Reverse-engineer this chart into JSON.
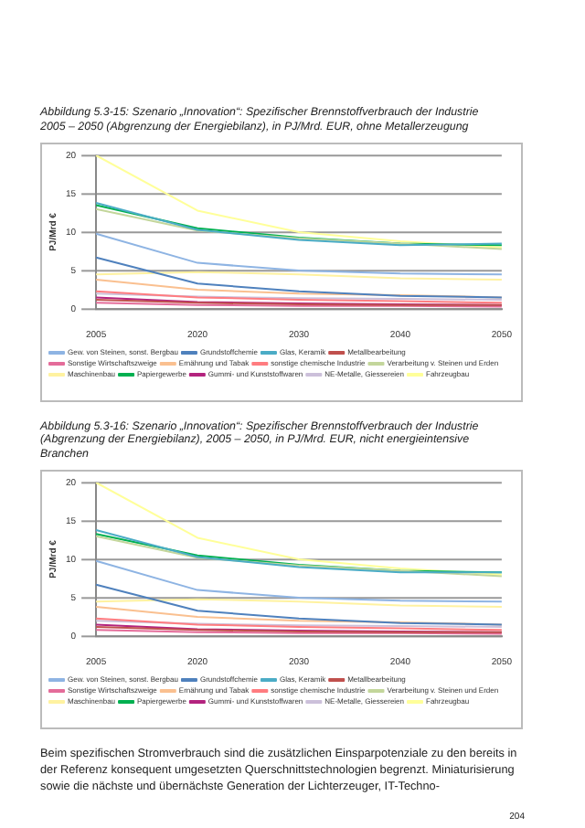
{
  "chart_data": [
    {
      "type": "line",
      "title": "Abbildung 5.3-15:  Szenario „Innovation“: Spezifischer Brennstoffverbrauch der Industrie 2005 – 2050 (Abgrenzung der Energiebilanz), in PJ/Mrd. EUR, ohne Metallerzeugung",
      "ylabel": "PJ/Mrd €",
      "categories": [
        "2005",
        "2020",
        "2030",
        "2040",
        "2050"
      ],
      "ylim": [
        0,
        20
      ],
      "yticks": [
        0,
        5,
        10,
        15,
        20
      ],
      "grid": "y",
      "legend": "bottom",
      "series": [
        {
          "name": "Gew. von Steinen, sonst. Bergbau",
          "color": "#8eb4e3",
          "values": [
            9.8,
            6,
            5,
            4.6,
            4.5
          ]
        },
        {
          "name": "Grundstoffchemie",
          "color": "#4f81bd",
          "values": [
            6.7,
            3.3,
            2.3,
            1.7,
            1.5
          ]
        },
        {
          "name": "Glas, Keramik",
          "color": "#4bacc6",
          "values": [
            13.8,
            10.3,
            9,
            8.3,
            8.5
          ]
        },
        {
          "name": "Metallbearbeitung",
          "color": "#c0504d",
          "values": [
            1.2,
            0.8,
            0.6,
            0.5,
            0.5
          ]
        },
        {
          "name": "Sonstige Wirtschaftszweige",
          "color": "#e46c9a",
          "values": [
            0.8,
            0.5,
            0.4,
            0.4,
            0.3
          ]
        },
        {
          "name": "Ernährung und Tabak",
          "color": "#fac090",
          "values": [
            3.8,
            2.5,
            2,
            1.8,
            1.5
          ]
        },
        {
          "name": "sonstige chemische Industrie",
          "color": "#ff7c80",
          "values": [
            2.3,
            1.5,
            1.2,
            1,
            0.8
          ]
        },
        {
          "name": "Verarbeitung v. Steinen und Erden",
          "color": "#c3d69b",
          "values": [
            13,
            10.2,
            9.2,
            8.5,
            7.8
          ]
        },
        {
          "name": "Maschinenbau",
          "color": "#fff2a0",
          "values": [
            4.5,
            4.8,
            4.5,
            4,
            3.8
          ]
        },
        {
          "name": "Papiergewerbe",
          "color": "#00b050",
          "values": [
            13.5,
            10.5,
            9.3,
            8.5,
            8.3
          ]
        },
        {
          "name": "Gummi- und Kunststoffwaren",
          "color": "#b3237e",
          "values": [
            1.5,
            0.9,
            0.7,
            0.6,
            0.5
          ]
        },
        {
          "name": "NE-Metalle, Giessereien",
          "color": "#ccc0da",
          "values": [
            2,
            1.6,
            1.4,
            1.3,
            1.2
          ]
        },
        {
          "name": "Fahrzeugbau",
          "color": "#ffff99",
          "values": [
            20,
            12.8,
            10,
            8.8,
            8
          ]
        }
      ]
    },
    {
      "type": "line",
      "title": "Abbildung 5.3-16:  Szenario „Innovation“: Spezifischer Brennstoffverbrauch der Industrie (Abgrenzung der Energiebilanz), 2005 – 2050, in PJ/Mrd. EUR, nicht energieintensive Branchen",
      "ylabel": "PJ/Mrd €",
      "categories": [
        "2005",
        "2020",
        "2030",
        "2040",
        "2050"
      ],
      "ylim": [
        0,
        20
      ],
      "yticks": [
        0,
        5,
        10,
        15,
        20
      ],
      "grid": "y",
      "legend": "bottom",
      "annotations": [
        "Beim spezifischen Stromverbrauch sind die zusätzlichen Einsparpotenziale zu den bereits in der Referenz konsequent umgesetzten Querschnittstechnologien begrenzt. Miniaturisierung sowie die nächste und übernächste Generation der Lichterzeuger, IT-Techno-",
        "204"
      ],
      "series": [
        {
          "name": "Gew. von Steinen, sonst. Bergbau",
          "color": "#8eb4e3",
          "values": [
            9.8,
            6,
            5,
            4.6,
            4.5
          ]
        },
        {
          "name": "Grundstoffchemie",
          "color": "#4f81bd",
          "values": [
            6.7,
            3.3,
            2.3,
            1.7,
            1.5
          ]
        },
        {
          "name": "Glas, Keramik",
          "color": "#4bacc6",
          "values": [
            13.8,
            10.3,
            9,
            8.3,
            8.3
          ]
        },
        {
          "name": "Metallbearbeitung",
          "color": "#c0504d",
          "values": [
            1.2,
            0.8,
            0.6,
            0.5,
            0.5
          ]
        },
        {
          "name": "Sonstige Wirtschaftszweige",
          "color": "#e46c9a",
          "values": [
            0.8,
            0.5,
            0.4,
            0.4,
            0.3
          ]
        },
        {
          "name": "Ernährung und Tabak",
          "color": "#fac090",
          "values": [
            3.8,
            2.5,
            2,
            1.8,
            1.5
          ]
        },
        {
          "name": "sonstige chemische Industrie",
          "color": "#ff7c80",
          "values": [
            2.3,
            1.5,
            1.2,
            1,
            0.8
          ]
        },
        {
          "name": "Verarbeitung v. Steinen und Erden",
          "color": "#c3d69b",
          "values": [
            13,
            10.2,
            9.2,
            8.5,
            7.8
          ]
        },
        {
          "name": "Maschinenbau",
          "color": "#fff2a0",
          "values": [
            4.5,
            4.8,
            4.5,
            4,
            3.8
          ]
        },
        {
          "name": "Papiergewerbe",
          "color": "#00b050",
          "values": [
            13.3,
            10.5,
            9.3,
            8.5,
            8.3
          ]
        },
        {
          "name": "Gummi- und Kunststoffwaren",
          "color": "#b3237e",
          "values": [
            1.5,
            0.9,
            0.7,
            0.6,
            0.5
          ]
        },
        {
          "name": "NE-Metalle, Giessereien",
          "color": "#ccc0da",
          "values": [
            2,
            1.6,
            1.4,
            1.3,
            1.2
          ]
        },
        {
          "name": "Fahrzeugbau",
          "color": "#ffff99",
          "values": [
            20,
            12.8,
            10,
            8.8,
            8
          ]
        }
      ]
    }
  ]
}
